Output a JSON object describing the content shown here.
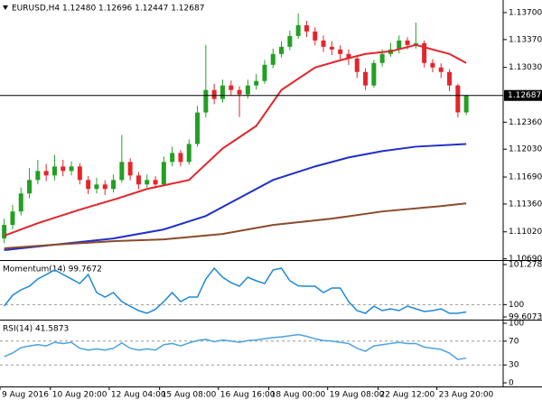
{
  "chart_data": [
    {
      "type": "candlestick",
      "title": "EURUSD,H4  1.12480 1.12696 1.12447 1.12687",
      "categories": [
        "9 Aug 2016",
        null,
        null,
        null,
        null,
        null,
        "10 Aug 20:00",
        null,
        null,
        null,
        null,
        null,
        null,
        "12 Aug 04:00",
        null,
        null,
        null,
        null,
        null,
        "15 Aug 08:00",
        null,
        null,
        null,
        null,
        null,
        null,
        "16 Aug 16:00",
        null,
        null,
        null,
        null,
        null,
        "18 Aug 00:00",
        null,
        null,
        null,
        null,
        null,
        null,
        "19 Aug 08:00",
        null,
        null,
        null,
        null,
        null,
        "22 Aug 12:00",
        null,
        null,
        null,
        null,
        null,
        null,
        "23 Aug 20:00",
        null,
        null,
        null
      ],
      "open": [
        1.10939,
        1.11104,
        1.11269,
        1.11489,
        1.11654,
        1.11764,
        1.11709,
        1.11819,
        1.11764,
        1.11819,
        1.11654,
        1.11544,
        1.11599,
        1.11544,
        1.11654,
        1.11874,
        1.11709,
        1.11599,
        1.11654,
        1.11599,
        1.11874,
        1.11984,
        1.11874,
        1.12094,
        1.12479,
        1.12754,
        1.12644,
        1.12809,
        1.12754,
        1.12699,
        1.12809,
        1.12864,
        1.13062,
        1.13194,
        1.13282,
        1.13414,
        1.13546,
        1.13469,
        1.13359,
        1.13282,
        1.13249,
        1.13194,
        1.13139,
        1.12974,
        1.12809,
        1.13084,
        1.13194,
        1.13249,
        1.13359,
        1.13304,
        1.13326,
        1.13084,
        1.13029,
        1.12974,
        1.12809,
        1.1248
      ],
      "high": [
        1.1118,
        1.1135,
        1.1156,
        1.118,
        1.119,
        1.1185,
        1.1196,
        1.119,
        1.1188,
        1.1186,
        1.117,
        1.1168,
        1.1165,
        1.1172,
        1.12204,
        1.1192,
        1.1175,
        1.1172,
        1.117,
        1.1194,
        1.1206,
        1.1202,
        1.1215,
        1.1256,
        1.13304,
        1.1283,
        1.1288,
        1.1287,
        1.128,
        1.1288,
        1.1295,
        1.1312,
        1.1326,
        1.1335,
        1.1348,
        1.13689,
        1.136,
        1.1352,
        1.1342,
        1.1335,
        1.133,
        1.1325,
        1.1318,
        1.1302,
        1.1312,
        1.1325,
        1.1333,
        1.1342,
        1.134,
        1.13579,
        1.1336,
        1.1313,
        1.1308,
        1.1301,
        1.1283,
        1.12696
      ],
      "low": [
        1.1088,
        1.1105,
        1.1122,
        1.1143,
        1.116,
        1.1164,
        1.1165,
        1.117,
        1.1171,
        1.116,
        1.1148,
        1.1149,
        1.1147,
        1.115,
        1.1162,
        1.1165,
        1.1154,
        1.1156,
        1.1155,
        1.1158,
        1.1182,
        1.1182,
        1.1184,
        1.1206,
        1.1242,
        1.1258,
        1.126,
        1.1269,
        1.12424,
        1.1265,
        1.1276,
        1.1283,
        1.1302,
        1.1315,
        1.1324,
        1.1338,
        1.134,
        1.133,
        1.1322,
        1.1318,
        1.1313,
        1.1306,
        1.129,
        1.12754,
        1.1278,
        1.1304,
        1.1316,
        1.132,
        1.1325,
        1.1326,
        1.1303,
        1.1297,
        1.129,
        1.1274,
        1.1242,
        1.12447
      ],
      "close": [
        1.11104,
        1.11269,
        1.11489,
        1.11654,
        1.11764,
        1.11709,
        1.11819,
        1.11764,
        1.11819,
        1.11654,
        1.11544,
        1.11599,
        1.11544,
        1.11654,
        1.11874,
        1.11709,
        1.11599,
        1.11654,
        1.11599,
        1.11874,
        1.11984,
        1.11874,
        1.12094,
        1.12479,
        1.12754,
        1.12644,
        1.12809,
        1.12754,
        1.12699,
        1.12809,
        1.12864,
        1.13062,
        1.13194,
        1.13282,
        1.13414,
        1.13546,
        1.13469,
        1.13359,
        1.13282,
        1.13249,
        1.13194,
        1.13139,
        1.12974,
        1.12809,
        1.13084,
        1.13194,
        1.13249,
        1.13359,
        1.13304,
        1.13326,
        1.13084,
        1.13029,
        1.12974,
        1.12809,
        1.1248,
        1.12687
      ],
      "up_color": "#22a022",
      "down_color": "#e3262b",
      "series": [
        {
          "color": "#e3262b",
          "x": [
            0,
            4,
            9,
            13,
            17,
            22,
            26,
            30,
            33,
            37,
            40,
            43,
            46,
            49,
            53,
            55
          ],
          "values": [
            1.10972,
            1.11126,
            1.11291,
            1.11412,
            1.11544,
            1.11654,
            1.12039,
            1.12314,
            1.12754,
            1.13029,
            1.13117,
            1.13194,
            1.13227,
            1.13304,
            1.13194,
            1.13084
          ]
        },
        {
          "color": "#2030c8",
          "x": [
            0,
            6,
            13,
            19,
            24,
            28,
            32,
            37,
            41,
            45,
            49,
            55
          ],
          "values": [
            1.10796,
            1.10862,
            1.10939,
            1.11049,
            1.11214,
            1.11434,
            1.11654,
            1.11819,
            1.11929,
            1.12006,
            1.12061,
            1.12094
          ]
        },
        {
          "color": "#8b4a2b",
          "x": [
            0,
            6,
            13,
            19,
            26,
            32,
            39,
            45,
            52,
            55
          ],
          "values": [
            1.10818,
            1.10862,
            1.10906,
            1.10928,
            1.10994,
            1.11104,
            1.11181,
            1.11269,
            1.11335,
            1.11368
          ]
        }
      ],
      "ylim": [
        1.10686,
        1.13843
      ],
      "yticks": [
        {
          "value": 1.137,
          "label": "1.13700"
        },
        {
          "value": 1.1337,
          "label": "1.13370"
        },
        {
          "value": 1.1303,
          "label": "1.13030"
        },
        {
          "value": 1.1236,
          "label": "1.12360"
        },
        {
          "value": 1.1203,
          "label": "1.12030"
        },
        {
          "value": 1.1169,
          "label": "1.11690"
        },
        {
          "value": 1.1136,
          "label": "1.11360"
        },
        {
          "value": 1.1102,
          "label": "1.11020"
        },
        {
          "value": 1.1069,
          "label": "1.10690"
        }
      ],
      "current_price": {
        "value": 1.12687,
        "label": "1.12687"
      }
    },
    {
      "type": "line",
      "title": "Momentum(14) 99.7672",
      "color": "#1e88d4",
      "values": [
        99.953,
        100.299,
        100.472,
        100.587,
        100.818,
        100.96,
        101.106,
        100.962,
        100.82,
        100.674,
        100.962,
        100.385,
        100.241,
        100.385,
        100.097,
        99.95,
        99.809,
        99.723,
        99.85,
        100.097,
        100.385,
        100.097,
        100.241,
        100.241,
        100.818,
        101.164,
        100.875,
        100.7,
        100.587,
        100.875,
        100.76,
        100.674,
        101.106,
        101.164,
        100.76,
        100.6,
        100.587,
        100.587,
        100.385,
        100.53,
        100.53,
        100.097,
        99.809,
        99.723,
        99.953,
        99.809,
        99.867,
        99.809,
        99.953,
        99.867,
        99.78,
        99.809,
        99.867,
        99.723,
        99.723,
        99.7672
      ],
      "ylim": [
        99.6073,
        101.2786
      ],
      "yticks": [
        101.2786,
        100,
        99.6073
      ],
      "levels": [
        100
      ]
    },
    {
      "type": "line",
      "title": "RSI(14) 41.5873",
      "color": "#4aa3df",
      "values": [
        44,
        50,
        59,
        62,
        64,
        62,
        68,
        66,
        68,
        58,
        55,
        57,
        55,
        58,
        67,
        58,
        55,
        57,
        55,
        64,
        66,
        62,
        67,
        71,
        73,
        69,
        72,
        70,
        68,
        71,
        72,
        74,
        76,
        77,
        79,
        81,
        78,
        74,
        71,
        70,
        68,
        66,
        58,
        53,
        62,
        64,
        66,
        68,
        66,
        66,
        60,
        58,
        56,
        50,
        39,
        41.5873
      ],
      "ylim": [
        0,
        100
      ],
      "yticks": [
        100,
        70,
        30,
        0
      ],
      "levels": [
        70,
        30
      ]
    }
  ]
}
